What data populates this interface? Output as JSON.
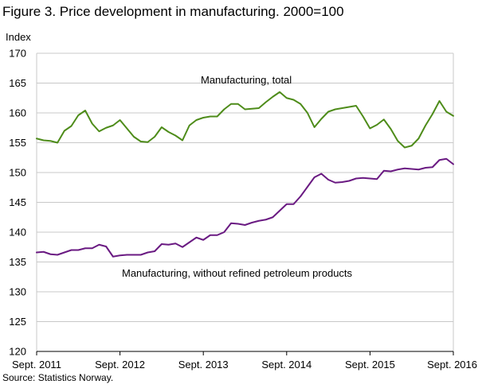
{
  "title": "Figure 3. Price development in manufacturing. 2000=100",
  "source": "Source: Statistics Norway.",
  "chart_data": {
    "type": "line",
    "ylabel": "Index",
    "ylim": [
      120,
      170
    ],
    "yticks": [
      120,
      125,
      130,
      135,
      140,
      145,
      150,
      155,
      160,
      165,
      170
    ],
    "xlim": [
      2011.667,
      2016.667
    ],
    "xtick_labels": [
      "Sept. 2011",
      "Sept. 2012",
      "Sept. 2013",
      "Sept. 2014",
      "Sept. 2015",
      "Sept. 2016"
    ],
    "grid": "horizontal",
    "colors": {
      "total": "#4e8c1a",
      "without_petroleum": "#6a1a82",
      "grid": "#c8c8c8"
    },
    "series": [
      {
        "key": "total",
        "name": "Manufacturing,  total",
        "x": [
          "2011-09",
          "2011-10",
          "2011-11",
          "2011-12",
          "2012-01",
          "2012-02",
          "2012-03",
          "2012-04",
          "2012-05",
          "2012-06",
          "2012-07",
          "2012-08",
          "2012-09",
          "2012-10",
          "2012-11",
          "2012-12",
          "2013-01",
          "2013-02",
          "2013-03",
          "2013-04",
          "2013-05",
          "2013-06",
          "2013-07",
          "2013-08",
          "2013-09",
          "2013-10",
          "2013-11",
          "2013-12",
          "2014-01",
          "2014-02",
          "2014-03",
          "2014-04",
          "2014-05",
          "2014-06",
          "2014-07",
          "2014-08",
          "2014-09",
          "2014-10",
          "2014-11",
          "2014-12",
          "2015-01",
          "2015-02",
          "2015-03",
          "2015-04",
          "2015-05",
          "2015-06",
          "2015-07",
          "2015-08",
          "2015-09",
          "2015-10",
          "2015-11",
          "2015-12",
          "2016-01",
          "2016-02",
          "2016-03",
          "2016-04",
          "2016-05",
          "2016-06",
          "2016-07",
          "2016-08",
          "2016-09"
        ],
        "values": [
          155.7,
          155.4,
          155.3,
          155.0,
          157.0,
          157.8,
          159.6,
          160.4,
          158.2,
          156.9,
          157.5,
          157.9,
          158.8,
          157.4,
          156.0,
          155.2,
          155.1,
          156.0,
          157.6,
          156.8,
          156.2,
          155.4,
          157.9,
          158.8,
          159.2,
          159.4,
          159.4,
          160.6,
          161.5,
          161.5,
          160.6,
          160.7,
          160.8,
          161.8,
          162.7,
          163.5,
          162.5,
          162.2,
          161.5,
          160.0,
          157.6,
          159.0,
          160.2,
          160.6,
          160.8,
          161.0,
          161.2,
          159.4,
          157.4,
          158.0,
          158.9,
          157.3,
          155.3,
          154.2,
          154.5,
          155.7,
          157.9,
          159.8,
          162.0,
          160.2,
          159.5
        ]
      },
      {
        "key": "without_petroleum",
        "name": "Manufacturing,  without refined  petroleum  products",
        "x": [
          "2011-09",
          "2011-10",
          "2011-11",
          "2011-12",
          "2012-01",
          "2012-02",
          "2012-03",
          "2012-04",
          "2012-05",
          "2012-06",
          "2012-07",
          "2012-08",
          "2012-09",
          "2012-10",
          "2012-11",
          "2012-12",
          "2013-01",
          "2013-02",
          "2013-03",
          "2013-04",
          "2013-05",
          "2013-06",
          "2013-07",
          "2013-08",
          "2013-09",
          "2013-10",
          "2013-11",
          "2013-12",
          "2014-01",
          "2014-02",
          "2014-03",
          "2014-04",
          "2014-05",
          "2014-06",
          "2014-07",
          "2014-08",
          "2014-09",
          "2014-10",
          "2014-11",
          "2014-12",
          "2015-01",
          "2015-02",
          "2015-03",
          "2015-04",
          "2015-05",
          "2015-06",
          "2015-07",
          "2015-08",
          "2015-09",
          "2015-10",
          "2015-11",
          "2015-12",
          "2016-01",
          "2016-02",
          "2016-03",
          "2016-04",
          "2016-05",
          "2016-06",
          "2016-07",
          "2016-08",
          "2016-09"
        ],
        "values": [
          136.6,
          136.7,
          136.3,
          136.2,
          136.6,
          137.0,
          137.0,
          137.3,
          137.3,
          137.9,
          137.6,
          135.9,
          136.1,
          136.2,
          136.2,
          136.2,
          136.6,
          136.8,
          138.0,
          137.9,
          138.1,
          137.5,
          138.3,
          139.1,
          138.7,
          139.5,
          139.5,
          140.0,
          141.5,
          141.4,
          141.2,
          141.6,
          141.9,
          142.1,
          142.5,
          143.6,
          144.7,
          144.7,
          146.0,
          147.6,
          149.2,
          149.8,
          148.8,
          148.3,
          148.4,
          148.6,
          149.0,
          149.1,
          149.0,
          148.9,
          150.3,
          150.2,
          150.5,
          150.7,
          150.6,
          150.5,
          150.8,
          150.9,
          152.1,
          152.3,
          151.4
        ]
      }
    ],
    "annotations": [
      {
        "series": "total",
        "text": "Manufacturing,  total"
      },
      {
        "series": "without_petroleum",
        "text": "Manufacturing,  without refined  petroleum  products"
      }
    ]
  }
}
